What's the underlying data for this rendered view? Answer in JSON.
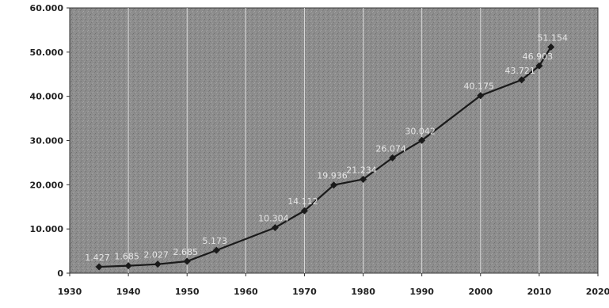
{
  "chart_data": {
    "type": "line",
    "title": "",
    "xlabel": "",
    "ylabel": "",
    "xlim": [
      1930,
      2020
    ],
    "ylim": [
      0,
      60000
    ],
    "x_ticks": [
      1930,
      1940,
      1950,
      1960,
      1970,
      1980,
      1990,
      2000,
      2010,
      2020
    ],
    "x_tick_labels": [
      "1930",
      "1940",
      "1950",
      "1960",
      "1970",
      "1980",
      "1990",
      "2000",
      "2010",
      "2020"
    ],
    "y_ticks": [
      0,
      10000,
      20000,
      30000,
      40000,
      50000,
      60000
    ],
    "y_tick_labels": [
      "0",
      "10.000",
      "20.000",
      "30.000",
      "40.000",
      "50.000",
      "60.000"
    ],
    "grid": "vertical",
    "legend": "none",
    "series_color": "#1a1a1a",
    "plot_background": "#8a8a8a",
    "x": [
      1935,
      1940,
      1945,
      1950,
      1955,
      1965,
      1970,
      1975,
      1980,
      1985,
      1990,
      2000,
      2007,
      2010,
      2012
    ],
    "values": [
      1427,
      1685,
      2027,
      2685,
      5173,
      10304,
      14112,
      19936,
      21234,
      26074,
      30042,
      40175,
      43721,
      46903,
      51154
    ],
    "data_labels": [
      "1.427",
      "1.685",
      "2.027",
      "2.685",
      "5.173",
      "10.304",
      "14.112",
      "19.936",
      "21.234",
      "26.074",
      "30.042",
      "40.175",
      "43.721",
      "46.903",
      "51.154"
    ]
  }
}
